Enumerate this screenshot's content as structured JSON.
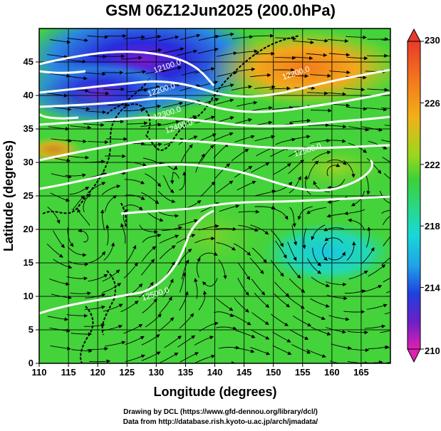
{
  "title": "GSM 06Z12Jun2025 (200.0hPa)",
  "xlabel": "Longitude (degrees)",
  "ylabel": "Latitude  (degrees)",
  "x_ticks": [
    "110",
    "115",
    "120",
    "125",
    "130",
    "135",
    "140",
    "145",
    "150",
    "155",
    "160",
    "165"
  ],
  "y_ticks": [
    "0",
    "5",
    "10",
    "15",
    "20",
    "25",
    "30",
    "35",
    "40",
    "45"
  ],
  "colorbar": {
    "labels": [
      "230",
      "226",
      "222",
      "218",
      "214",
      "210"
    ],
    "min": 210,
    "max": 230
  },
  "contour_labels": [
    {
      "text": "12100.0",
      "lon": 132,
      "lat": 44
    },
    {
      "text": "12200.0",
      "lon": 131,
      "lat": 40.5
    },
    {
      "text": "12300.0",
      "lon": 132,
      "lat": 37
    },
    {
      "text": "12400.0",
      "lon": 134,
      "lat": 35
    },
    {
      "text": "12200.0",
      "lon": 154,
      "lat": 43
    },
    {
      "text": "12500.0",
      "lon": 156,
      "lat": 31.5
    },
    {
      "text": "12500.0",
      "lon": 130,
      "lat": 10
    }
  ],
  "credits": {
    "line1": "Drawing by DCL (https://www.gfd-dennou.org/library/dcl/)",
    "line2": "Data from http://database.rish.kyoto-u.ac.jp/arch/jmadata/"
  },
  "colors": {
    "background_field": "#44d33a",
    "cold_core": "#2a2adc",
    "warm_core": "#f08a1a",
    "contour": "#ffffff",
    "streamline": "#000000"
  }
}
